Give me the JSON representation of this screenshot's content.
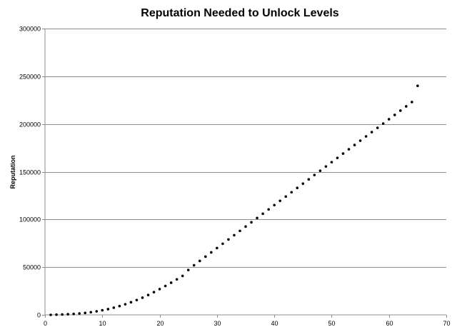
{
  "chart_data": {
    "type": "scatter",
    "title": "Reputation Needed to Unlock Levels",
    "xlabel": "",
    "ylabel": "Reputation",
    "xlim": [
      0,
      70
    ],
    "ylim": [
      0,
      300000
    ],
    "x_ticks": [
      0,
      10,
      20,
      30,
      40,
      50,
      60,
      70
    ],
    "y_ticks": [
      0,
      50000,
      100000,
      150000,
      200000,
      250000,
      300000
    ],
    "grid": "horizontal",
    "legend": "none",
    "marker_color": "#000000",
    "grid_color": "#8c8c8c",
    "series": [
      {
        "x": [
          1,
          2,
          3,
          4,
          5,
          6,
          7,
          8,
          9,
          10,
          11,
          12,
          13,
          14,
          15,
          16,
          17,
          18,
          19,
          20,
          21,
          22,
          23,
          24,
          25,
          26,
          27,
          28,
          29,
          30,
          31,
          32,
          33,
          34,
          35,
          36,
          37,
          38,
          39,
          40,
          41,
          42,
          43,
          44,
          45,
          46,
          47,
          48,
          49,
          50,
          51,
          52,
          53,
          54,
          55,
          56,
          57,
          58,
          59,
          60,
          61,
          62,
          63,
          64,
          65
        ],
        "y": [
          0,
          200,
          400,
          700,
          1000,
          1500,
          2000,
          2800,
          3700,
          4800,
          6000,
          7500,
          9200,
          11100,
          13200,
          15500,
          18000,
          20800,
          23800,
          27000,
          30300,
          33700,
          37200,
          40800,
          47000,
          52000,
          56500,
          61000,
          65500,
          70000,
          74500,
          79000,
          83500,
          88000,
          92500,
          97000,
          101500,
          106000,
          110500,
          115000,
          119500,
          124000,
          128500,
          133000,
          137500,
          142000,
          146500,
          151000,
          155500,
          160000,
          164500,
          169000,
          173500,
          178000,
          182500,
          187000,
          191500,
          196000,
          200500,
          205000,
          209500,
          214000,
          218500,
          223000,
          240000
        ]
      }
    ]
  }
}
